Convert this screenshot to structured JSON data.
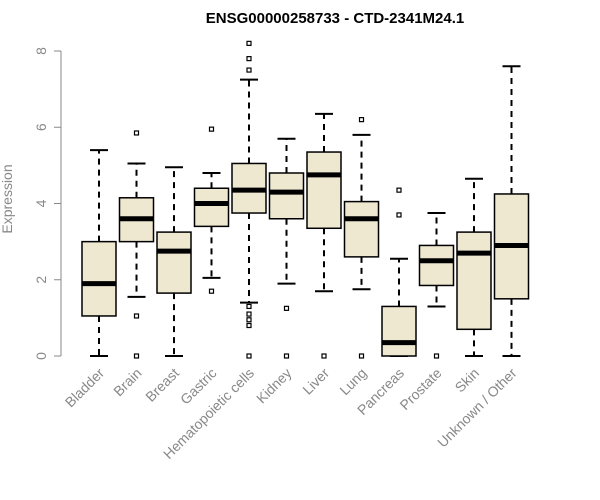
{
  "colors": {
    "box_fill": "#eee8d0",
    "box_stroke": "#000000",
    "median": "#000000",
    "axis": "#888888"
  },
  "chart_data": {
    "type": "boxplot",
    "title": "ENSG00000258733 - CTD-2341M24.1",
    "xlabel": "",
    "ylabel": "Expression",
    "ylim": [
      0,
      8
    ],
    "yticks": [
      0,
      2,
      4,
      6,
      8
    ],
    "categories": [
      "Bladder",
      "Brain",
      "Breast",
      "Gastric",
      "Hematopoietic cells",
      "Kidney",
      "Liver",
      "Lung",
      "Pancreas",
      "Prostate",
      "Skin",
      "Unknown / Other"
    ],
    "boxes": [
      {
        "name": "Bladder",
        "whisker_low": 0.0,
        "q1": 1.05,
        "median": 1.9,
        "q3": 3.0,
        "whisker_high": 5.4,
        "outliers": []
      },
      {
        "name": "Brain",
        "whisker_low": 1.55,
        "q1": 3.0,
        "median": 3.6,
        "q3": 4.15,
        "whisker_high": 5.05,
        "outliers": [
          0.0,
          1.05,
          5.85
        ]
      },
      {
        "name": "Breast",
        "whisker_low": 0.0,
        "q1": 1.65,
        "median": 2.75,
        "q3": 3.25,
        "whisker_high": 4.95,
        "outliers": []
      },
      {
        "name": "Gastric",
        "whisker_low": 2.05,
        "q1": 3.4,
        "median": 4.0,
        "q3": 4.4,
        "whisker_high": 4.8,
        "outliers": [
          1.7,
          5.95
        ]
      },
      {
        "name": "Hematopoietic cells",
        "whisker_low": 1.4,
        "q1": 3.75,
        "median": 4.35,
        "q3": 5.05,
        "whisker_high": 7.25,
        "outliers": [
          0.0,
          0.8,
          0.95,
          1.1,
          1.3,
          7.5,
          7.8,
          8.2
        ]
      },
      {
        "name": "Kidney",
        "whisker_low": 1.9,
        "q1": 3.6,
        "median": 4.3,
        "q3": 4.8,
        "whisker_high": 5.7,
        "outliers": [
          0.0,
          1.25
        ]
      },
      {
        "name": "Liver",
        "whisker_low": 1.7,
        "q1": 3.35,
        "median": 4.75,
        "q3": 5.35,
        "whisker_high": 6.35,
        "outliers": [
          0.0
        ]
      },
      {
        "name": "Lung",
        "whisker_low": 1.75,
        "q1": 2.6,
        "median": 3.6,
        "q3": 4.05,
        "whisker_high": 5.8,
        "outliers": [
          0.0,
          6.2
        ]
      },
      {
        "name": "Pancreas",
        "whisker_low": 0.0,
        "q1": 0.0,
        "median": 0.35,
        "q3": 1.3,
        "whisker_high": 2.55,
        "outliers": [
          3.7,
          4.35
        ]
      },
      {
        "name": "Prostate",
        "whisker_low": 1.3,
        "q1": 1.85,
        "median": 2.5,
        "q3": 2.9,
        "whisker_high": 3.75,
        "outliers": [
          0.0
        ]
      },
      {
        "name": "Skin",
        "whisker_low": 0.0,
        "q1": 0.7,
        "median": 2.7,
        "q3": 3.25,
        "whisker_high": 4.65,
        "outliers": []
      },
      {
        "name": "Unknown / Other",
        "whisker_low": 0.0,
        "q1": 1.5,
        "median": 2.9,
        "q3": 4.25,
        "whisker_high": 7.6,
        "outliers": []
      }
    ]
  }
}
